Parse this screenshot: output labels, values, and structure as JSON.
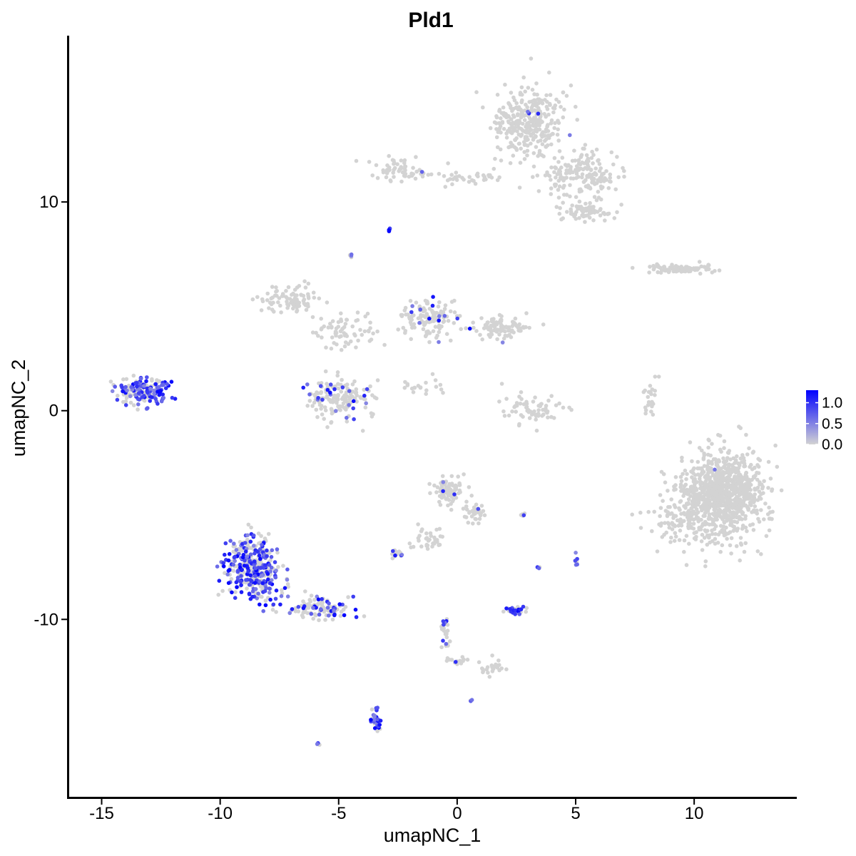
{
  "chart_data": {
    "type": "scatter",
    "title": "Pld1",
    "xlabel": "umapNC_1",
    "ylabel": "umapNC_2",
    "xlim": [
      -16.4,
      14.3
    ],
    "ylim": [
      -18.5,
      17.9
    ],
    "xticks": [
      -15,
      -10,
      -5,
      0,
      5,
      10
    ],
    "xtick_labels": [
      "-15",
      "-10",
      "-5",
      "0",
      "5",
      "10"
    ],
    "yticks": [
      -10,
      0,
      10
    ],
    "ytick_labels": [
      "-10",
      "0",
      "10"
    ],
    "grid": false,
    "legend": {
      "placement": "right",
      "type": "colorbar",
      "range": [
        0,
        1.3
      ],
      "ticks": [
        0,
        0.5,
        1.0
      ],
      "tick_labels": [
        "0.0",
        "0.5",
        "1.0"
      ],
      "low_color": "#D3D3D3",
      "high_color": "#0000FF"
    },
    "point_color_grey": "#D3D3D3",
    "clusters": [
      {
        "center": [
          3.0,
          13.8
        ],
        "spread": [
          1.4,
          1.4
        ],
        "n": 320,
        "expr_frac": 0.004
      },
      {
        "center": [
          5.2,
          11.3
        ],
        "spread": [
          1.6,
          0.9
        ],
        "n": 180,
        "expr_frac": 0.0
      },
      {
        "center": [
          5.5,
          9.5
        ],
        "spread": [
          1.0,
          0.5
        ],
        "n": 70,
        "expr_frac": 0.0
      },
      {
        "center": [
          -2.4,
          11.5
        ],
        "spread": [
          1.2,
          0.5
        ],
        "n": 60,
        "expr_frac": 0.05
      },
      {
        "center": [
          0.5,
          11.2
        ],
        "spread": [
          1.4,
          0.3
        ],
        "n": 35,
        "expr_frac": 0.03
      },
      {
        "center": [
          -7.0,
          5.3
        ],
        "spread": [
          1.2,
          0.6
        ],
        "n": 90,
        "expr_frac": 0.01
      },
      {
        "center": [
          -4.8,
          3.8
        ],
        "spread": [
          1.2,
          0.9
        ],
        "n": 70,
        "expr_frac": 0.0
      },
      {
        "center": [
          -1.2,
          4.5
        ],
        "spread": [
          1.2,
          1.0
        ],
        "n": 130,
        "expr_frac": 0.07
      },
      {
        "center": [
          1.8,
          4.0
        ],
        "spread": [
          1.0,
          0.5
        ],
        "n": 90,
        "expr_frac": 0.07
      },
      {
        "center": [
          -4.9,
          0.6
        ],
        "spread": [
          1.3,
          0.9
        ],
        "n": 160,
        "expr_frac": 0.13
      },
      {
        "center": [
          -1.5,
          1.2
        ],
        "spread": [
          1.2,
          0.4
        ],
        "n": 20,
        "expr_frac": 0.0
      },
      {
        "center": [
          3.2,
          0.0
        ],
        "spread": [
          1.2,
          0.7
        ],
        "n": 70,
        "expr_frac": 0.01
      },
      {
        "center": [
          8.2,
          0.6
        ],
        "spread": [
          0.3,
          0.9
        ],
        "n": 25,
        "expr_frac": 0.0
      },
      {
        "center": [
          9.5,
          6.8
        ],
        "spread": [
          1.4,
          0.2
        ],
        "n": 90,
        "expr_frac": 0.0
      },
      {
        "center": [
          -13.2,
          1.0
        ],
        "spread": [
          1.0,
          0.6
        ],
        "n": 170,
        "expr_frac": 0.55
      },
      {
        "center": [
          -8.6,
          -7.5
        ],
        "spread": [
          1.1,
          1.3
        ],
        "n": 380,
        "expr_frac": 0.55
      },
      {
        "center": [
          -5.8,
          -9.5
        ],
        "spread": [
          1.2,
          0.5
        ],
        "n": 110,
        "expr_frac": 0.3
      },
      {
        "center": [
          -0.3,
          -3.8
        ],
        "spread": [
          0.6,
          0.6
        ],
        "n": 90,
        "expr_frac": 0.08
      },
      {
        "center": [
          0.7,
          -4.9
        ],
        "spread": [
          0.5,
          0.5
        ],
        "n": 35,
        "expr_frac": 0.06
      },
      {
        "center": [
          -1.3,
          -6.2
        ],
        "spread": [
          0.6,
          0.6
        ],
        "n": 35,
        "expr_frac": 0.0
      },
      {
        "center": [
          -2.5,
          -6.9
        ],
        "spread": [
          0.3,
          0.2
        ],
        "n": 20,
        "expr_frac": 0.1
      },
      {
        "center": [
          11.2,
          -4.0
        ],
        "spread": [
          1.6,
          1.9
        ],
        "n": 950,
        "expr_frac": 0.001
      },
      {
        "center": [
          9.2,
          -5.3
        ],
        "spread": [
          1.0,
          1.1
        ],
        "n": 80,
        "expr_frac": 0.0
      },
      {
        "center": [
          2.4,
          -9.6
        ],
        "spread": [
          0.4,
          0.2
        ],
        "n": 35,
        "expr_frac": 0.4
      },
      {
        "center": [
          -0.5,
          -10.6
        ],
        "spread": [
          0.2,
          0.8
        ],
        "n": 25,
        "expr_frac": 0.2
      },
      {
        "center": [
          1.6,
          -12.3
        ],
        "spread": [
          0.6,
          0.3
        ],
        "n": 25,
        "expr_frac": 0.1
      },
      {
        "center": [
          0.0,
          -12.0
        ],
        "spread": [
          0.4,
          0.2
        ],
        "n": 15,
        "expr_frac": 0.05
      },
      {
        "center": [
          -3.4,
          -14.8
        ],
        "spread": [
          0.2,
          0.5
        ],
        "n": 35,
        "expr_frac": 0.5
      },
      {
        "center": [
          5.0,
          -7.2
        ],
        "spread": [
          0.1,
          0.3
        ],
        "n": 8,
        "expr_frac": 0.5
      },
      {
        "center": [
          2.8,
          -5.0
        ],
        "spread": [
          0.1,
          0.1
        ],
        "n": 5,
        "expr_frac": 0.2
      },
      {
        "center": [
          3.5,
          -7.5
        ],
        "spread": [
          0.1,
          0.1
        ],
        "n": 3,
        "expr_frac": 0.3
      },
      {
        "center": [
          0.6,
          -13.9
        ],
        "spread": [
          0.1,
          0.1
        ],
        "n": 4,
        "expr_frac": 0.5
      },
      {
        "center": [
          -5.9,
          -16.0
        ],
        "spread": [
          0.1,
          0.1
        ],
        "n": 3,
        "expr_frac": 0.6
      },
      {
        "center": [
          -4.5,
          7.4
        ],
        "spread": [
          0.15,
          0.15
        ],
        "n": 5,
        "expr_frac": 0.3
      },
      {
        "center": [
          -2.8,
          8.7
        ],
        "spread": [
          0.1,
          0.1
        ],
        "n": 4,
        "expr_frac": 1.0
      }
    ],
    "seed": 7
  }
}
